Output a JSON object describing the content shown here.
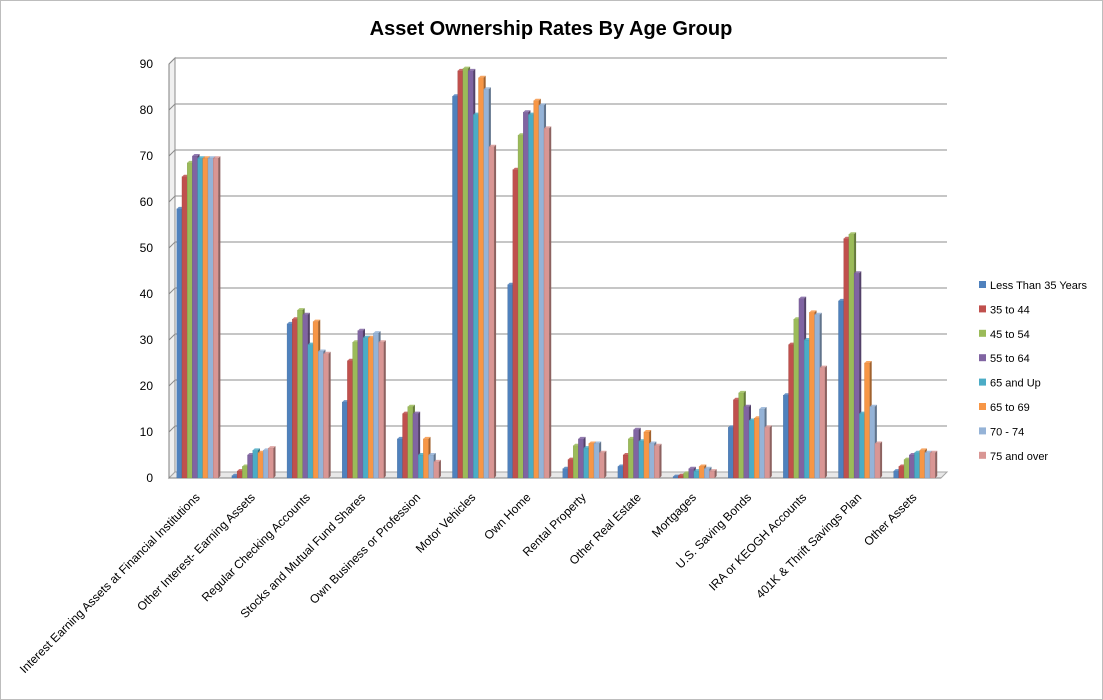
{
  "chart_data": {
    "type": "bar",
    "title": "Asset Ownership Rates By Age Group",
    "xlabel": "",
    "ylabel": "",
    "ylim": [
      0,
      90
    ],
    "yticks": [
      0,
      10,
      20,
      30,
      40,
      50,
      60,
      70,
      80,
      90
    ],
    "grid": true,
    "legend_position": "right",
    "categories": [
      "Interest Earning Assets at Financial Institutions",
      "Other Interest- Earning Assets",
      "Regular Checking Accounts",
      "Stocks and Mutual Fund Shares",
      "Own Business or Profession",
      "Motor Vehicles",
      "Own Home",
      "Rental Property",
      "Other Real Estate",
      "Mortgages",
      "U.S. Saving Bonds",
      "IRA or KEOGH Accounts",
      "401K & Thrift Savings Plan",
      "Other Assets"
    ],
    "series": [
      {
        "name": "Less Than 35 Years",
        "color": "#4f81bd",
        "values": [
          58.5,
          0.5,
          33.5,
          16.5,
          8.5,
          83.0,
          42.0,
          2.0,
          2.5,
          0.3,
          11.0,
          18.0,
          38.5,
          1.5
        ]
      },
      {
        "name": "35 to 44",
        "color": "#c0504d",
        "values": [
          65.5,
          1.5,
          34.5,
          25.5,
          14.0,
          88.5,
          67.0,
          4.0,
          5.0,
          0.5,
          17.0,
          29.0,
          52.0,
          2.5
        ]
      },
      {
        "name": "45 to 54",
        "color": "#9bbb59",
        "values": [
          68.5,
          2.5,
          36.5,
          29.5,
          15.5,
          89.0,
          74.5,
          7.0,
          8.5,
          1.0,
          18.5,
          34.5,
          53.0,
          4.0
        ]
      },
      {
        "name": "55 to 64",
        "color": "#8064a2",
        "values": [
          70.0,
          5.0,
          35.5,
          32.0,
          14.0,
          88.5,
          79.5,
          8.5,
          10.5,
          2.0,
          15.5,
          39.0,
          44.5,
          5.0
        ]
      },
      {
        "name": "65 and Up",
        "color": "#4bacc6",
        "values": [
          69.5,
          6.0,
          29.0,
          30.5,
          5.0,
          79.0,
          79.0,
          6.5,
          8.0,
          1.5,
          12.5,
          30.0,
          14.0,
          5.5
        ]
      },
      {
        "name": "65 to 69",
        "color": "#f79646",
        "values": [
          69.5,
          5.5,
          34.0,
          30.5,
          8.5,
          87.0,
          82.0,
          7.5,
          10.0,
          2.5,
          13.0,
          36.0,
          25.0,
          6.0
        ]
      },
      {
        "name": "70 - 74",
        "color": "#95b3d7",
        "values": [
          69.5,
          6.0,
          27.5,
          31.5,
          5.0,
          84.5,
          81.0,
          7.5,
          7.5,
          2.0,
          15.0,
          35.5,
          15.5,
          5.5
        ]
      },
      {
        "name": "75 and over",
        "color": "#d99694",
        "values": [
          69.5,
          6.5,
          27.0,
          29.5,
          3.5,
          72.0,
          76.0,
          5.5,
          7.0,
          1.5,
          11.0,
          24.0,
          7.5,
          5.5
        ]
      }
    ]
  }
}
